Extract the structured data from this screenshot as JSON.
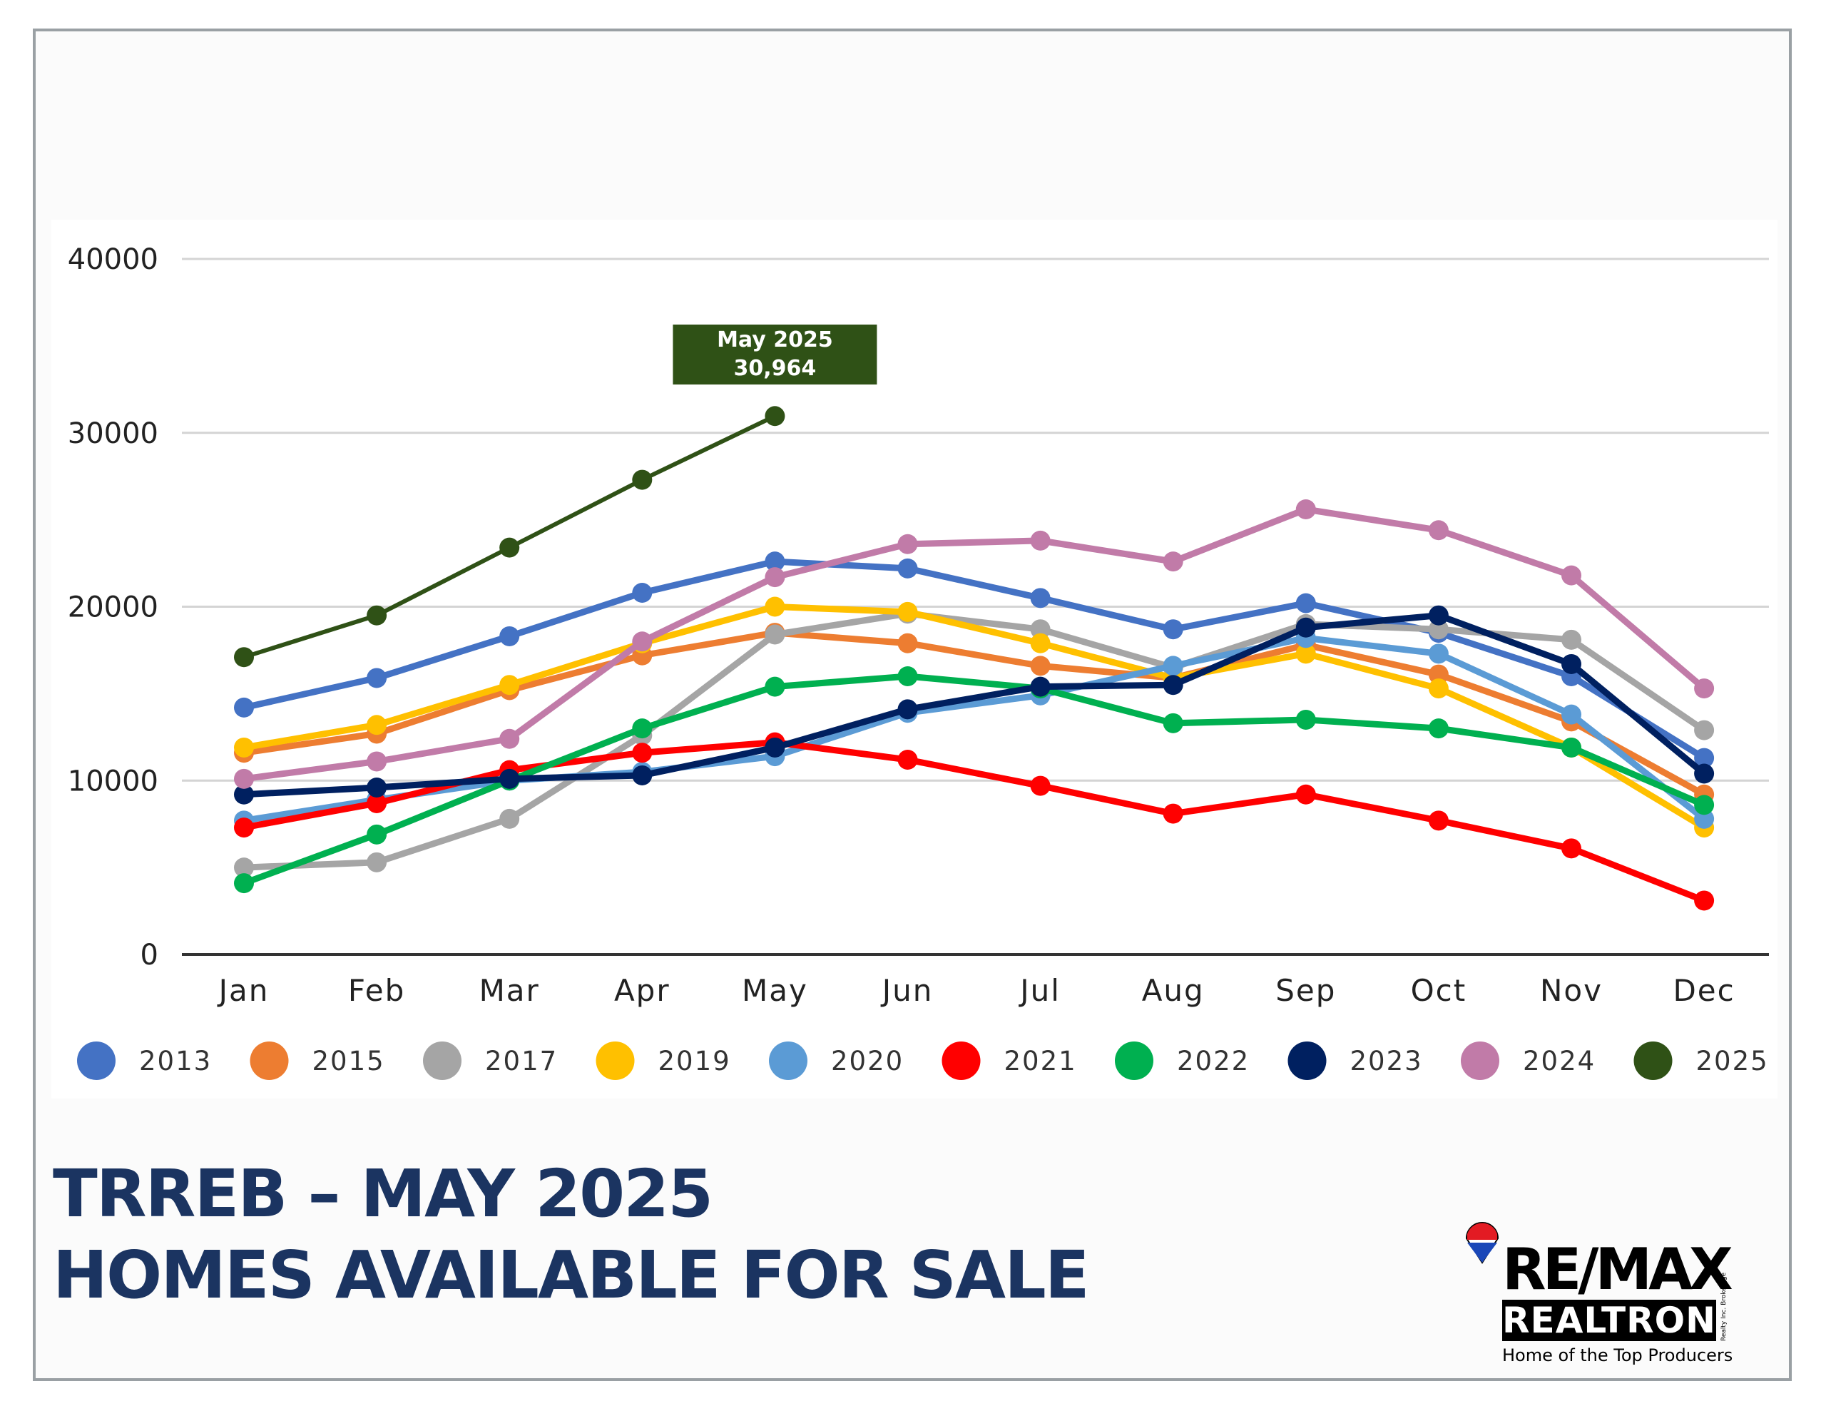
{
  "chart_data": {
    "type": "line",
    "title": "",
    "xlabel": "",
    "ylabel": "",
    "ylim": [
      0,
      40000
    ],
    "yticks": [
      0,
      10000,
      20000,
      30000,
      40000
    ],
    "grid": true,
    "legend_position": "bottom",
    "categories": [
      "Jan",
      "Feb",
      "Mar",
      "Apr",
      "May",
      "Jun",
      "Jul",
      "Aug",
      "Sep",
      "Oct",
      "Nov",
      "Dec"
    ],
    "series": [
      {
        "name": "2013",
        "color": "#4472c4",
        "values": [
          14200,
          15900,
          18300,
          20800,
          22600,
          22200,
          20500,
          18700,
          20200,
          18500,
          16000,
          11300
        ]
      },
      {
        "name": "2015",
        "color": "#ed7d31",
        "values": [
          11600,
          12700,
          15200,
          17200,
          18500,
          17900,
          16600,
          15900,
          17800,
          16100,
          13400,
          9200
        ]
      },
      {
        "name": "2017",
        "color": "#a5a5a5",
        "values": [
          5000,
          5300,
          7800,
          12600,
          18400,
          19600,
          18700,
          16500,
          19000,
          18700,
          18100,
          12900
        ]
      },
      {
        "name": "2019",
        "color": "#ffc000",
        "values": [
          11900,
          13200,
          15500,
          17900,
          20000,
          19700,
          17900,
          15900,
          17300,
          15300,
          11900,
          7300
        ]
      },
      {
        "name": "2020",
        "color": "#5b9bd5",
        "values": [
          7700,
          8900,
          10000,
          10500,
          11400,
          13900,
          14900,
          16600,
          18200,
          17300,
          13800,
          7800
        ]
      },
      {
        "name": "2021",
        "color": "#ff0000",
        "values": [
          7300,
          8700,
          10600,
          11600,
          12200,
          11200,
          9700,
          8100,
          9200,
          7700,
          6100,
          3100
        ]
      },
      {
        "name": "2022",
        "color": "#00b050",
        "values": [
          4100,
          6900,
          10000,
          13000,
          15400,
          16000,
          15300,
          13300,
          13500,
          13000,
          11900,
          8600
        ]
      },
      {
        "name": "2023",
        "color": "#002060",
        "values": [
          9200,
          9600,
          10100,
          10300,
          11900,
          14100,
          15400,
          15500,
          18800,
          19500,
          16700,
          10400
        ]
      },
      {
        "name": "2024",
        "color": "#c17ba8",
        "values": [
          10100,
          11100,
          12400,
          18000,
          21700,
          23600,
          23800,
          22600,
          25600,
          24400,
          21800,
          15300
        ]
      },
      {
        "name": "2025",
        "color": "#2f5116",
        "values": [
          17100,
          19500,
          23400,
          27300,
          30964,
          null,
          null,
          null,
          null,
          null,
          null,
          null
        ]
      }
    ],
    "annotation": {
      "line1": "May 2025",
      "line2": "30,964",
      "series": "2025",
      "category": "May",
      "color": "#2f5116"
    }
  },
  "headline": {
    "line1": "TRREB – MAY 2025",
    "line2": "HOMES AVAILABLE FOR SALE"
  },
  "logo": {
    "brand": "RE/MAX",
    "name": "REALTRON",
    "small_text": "Realty Inc. Brokerage",
    "tagline": "Home of the Top Producers"
  }
}
